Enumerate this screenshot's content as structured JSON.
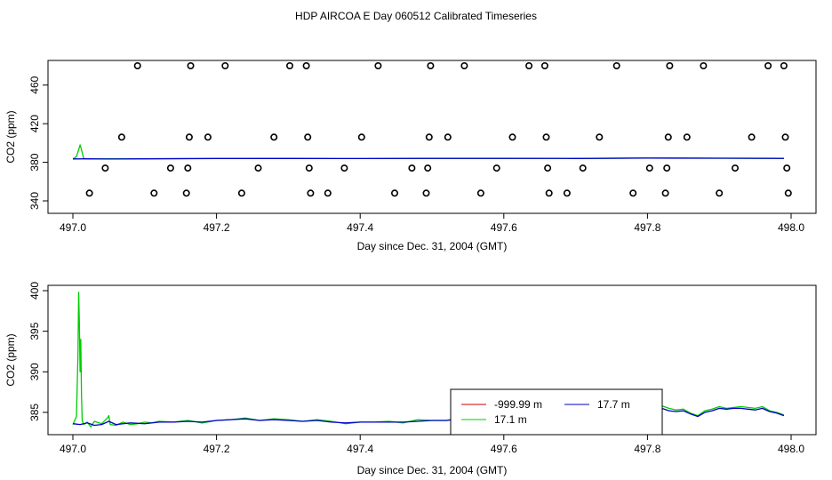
{
  "title": "HDP AIRCOA E  Day 060512  Calibrated Timeseries",
  "chart_data": [
    {
      "type": "scatter",
      "xlabel": "Day since Dec. 31, 2004 (GMT)",
      "ylabel": "CO2 (ppm)",
      "xlim": [
        497.0,
        498.0
      ],
      "ylim": [
        340,
        480
      ],
      "xticks": [
        "497.0",
        "497.2",
        "497.4",
        "497.6",
        "497.8",
        "498.0"
      ],
      "yticks": [
        "340",
        "380",
        "420",
        "460"
      ],
      "xtick_values": [
        497.0,
        497.2,
        497.4,
        497.6,
        497.8,
        498.0
      ],
      "ytick_values": [
        340,
        380,
        420,
        460
      ],
      "points": [
        [
          497.023,
          348
        ],
        [
          497.045,
          374
        ],
        [
          497.068,
          406
        ],
        [
          497.09,
          480
        ],
        [
          497.113,
          348
        ],
        [
          497.136,
          374
        ],
        [
          497.158,
          348
        ],
        [
          497.16,
          374
        ],
        [
          497.162,
          406
        ],
        [
          497.164,
          480
        ],
        [
          497.188,
          406
        ],
        [
          497.212,
          480
        ],
        [
          497.235,
          348
        ],
        [
          497.258,
          374
        ],
        [
          497.28,
          406
        ],
        [
          497.302,
          480
        ],
        [
          497.325,
          480
        ],
        [
          497.327,
          406
        ],
        [
          497.329,
          374
        ],
        [
          497.331,
          348
        ],
        [
          497.355,
          348
        ],
        [
          497.378,
          374
        ],
        [
          497.402,
          406
        ],
        [
          497.425,
          480
        ],
        [
          497.448,
          348
        ],
        [
          497.472,
          374
        ],
        [
          497.492,
          348
        ],
        [
          497.494,
          374
        ],
        [
          497.496,
          406
        ],
        [
          497.498,
          480
        ],
        [
          497.522,
          406
        ],
        [
          497.545,
          480
        ],
        [
          497.568,
          348
        ],
        [
          497.59,
          374
        ],
        [
          497.612,
          406
        ],
        [
          497.635,
          480
        ],
        [
          497.657,
          480
        ],
        [
          497.659,
          406
        ],
        [
          497.661,
          374
        ],
        [
          497.663,
          348
        ],
        [
          497.688,
          348
        ],
        [
          497.71,
          374
        ],
        [
          497.733,
          406
        ],
        [
          497.757,
          480
        ],
        [
          497.78,
          348
        ],
        [
          497.803,
          374
        ],
        [
          497.825,
          348
        ],
        [
          497.827,
          374
        ],
        [
          497.829,
          406
        ],
        [
          497.831,
          480
        ],
        [
          497.855,
          406
        ],
        [
          497.878,
          480
        ],
        [
          497.9,
          348
        ],
        [
          497.922,
          374
        ],
        [
          497.945,
          406
        ],
        [
          497.968,
          480
        ],
        [
          497.99,
          480
        ],
        [
          497.992,
          406
        ],
        [
          497.994,
          374
        ],
        [
          497.996,
          348
        ]
      ],
      "series": [
        {
          "color": "#00cc00",
          "x": [
            497.0,
            497.005,
            497.008,
            497.01,
            497.012,
            497.015,
            497.02,
            497.1,
            497.2,
            497.3,
            497.4,
            497.5,
            497.6,
            497.7,
            497.8,
            497.9,
            497.99
          ],
          "y": [
            383.5,
            386,
            393,
            398,
            393,
            384,
            383.5,
            383.7,
            384,
            384,
            383.8,
            384,
            384,
            383.9,
            384.5,
            384.2,
            384
          ]
        },
        {
          "color": "#0000cc",
          "x": [
            497.0,
            497.02,
            497.05,
            497.1,
            497.2,
            497.3,
            497.4,
            497.5,
            497.6,
            497.7,
            497.8,
            497.9,
            497.99
          ],
          "y": [
            383.5,
            383.6,
            383.4,
            383.6,
            383.8,
            383.9,
            383.8,
            384,
            384,
            383.9,
            384.3,
            384.2,
            384
          ]
        }
      ]
    },
    {
      "type": "line",
      "xlabel": "Day since Dec. 31, 2004 (GMT)",
      "ylabel": "CO2 (ppm)",
      "xlim": [
        497.0,
        498.0
      ],
      "ylim": [
        382.8,
        400
      ],
      "xticks": [
        "497.0",
        "497.2",
        "497.4",
        "497.6",
        "497.8",
        "498.0"
      ],
      "yticks": [
        "385",
        "390",
        "395",
        "400"
      ],
      "xtick_values": [
        497.0,
        497.2,
        497.4,
        497.6,
        497.8,
        498.0
      ],
      "ytick_values": [
        385,
        390,
        395,
        400
      ],
      "legend": {
        "placement": "bottom-center",
        "entries": [
          {
            "label": "-999.99 m",
            "color": "#cc0000"
          },
          {
            "label": "17.7 m",
            "color": "#0000cc"
          },
          {
            "label": "17.1 m",
            "color": "#00cc00"
          }
        ]
      },
      "series": [
        {
          "name": "17.1 m",
          "color": "#00cc00",
          "x": [
            497.0,
            497.005,
            497.007,
            497.008,
            497.009,
            497.01,
            497.011,
            497.012,
            497.013,
            497.015,
            497.02,
            497.025,
            497.03,
            497.04,
            497.048,
            497.05,
            497.052,
            497.06,
            497.07,
            497.08,
            497.09,
            497.1,
            497.11,
            497.12,
            497.14,
            497.16,
            497.18,
            497.2,
            497.22,
            497.24,
            497.26,
            497.28,
            497.3,
            497.32,
            497.34,
            497.36,
            497.38,
            497.4,
            497.42,
            497.44,
            497.46,
            497.48,
            497.5,
            497.52,
            497.54,
            497.56,
            497.58,
            497.6,
            497.62,
            497.64,
            497.66,
            497.68,
            497.7,
            497.72,
            497.74,
            497.75,
            497.76,
            497.78,
            497.79,
            497.8,
            497.81,
            497.82,
            497.83,
            497.84,
            497.85,
            497.86,
            497.87,
            497.88,
            497.89,
            497.9,
            497.91,
            497.92,
            497.93,
            497.94,
            497.95,
            497.96,
            497.97,
            497.98,
            497.99
          ],
          "y": [
            383.5,
            384.5,
            392,
            399.8,
            396,
            390,
            394,
            387,
            384,
            383.5,
            383.8,
            383.2,
            383.9,
            383.6,
            384.3,
            384.6,
            383.5,
            383.4,
            383.8,
            383.5,
            383.6,
            383.8,
            383.7,
            383.9,
            383.8,
            384.0,
            383.7,
            384.0,
            384.1,
            384.3,
            384.0,
            384.2,
            384.1,
            383.9,
            384.1,
            383.9,
            383.6,
            383.8,
            383.8,
            383.9,
            383.7,
            384.1,
            384.0,
            384.0,
            384.4,
            384.2,
            384.3,
            384.3,
            384.2,
            384.0,
            383.9,
            384.0,
            384.0,
            384.1,
            384.3,
            384.4,
            384.0,
            384.3,
            384.8,
            384.6,
            385.0,
            385.8,
            385.5,
            385.3,
            385.4,
            384.9,
            384.6,
            385.2,
            385.4,
            385.7,
            385.5,
            385.6,
            385.7,
            385.6,
            385.5,
            385.7,
            385.2,
            385.0,
            384.7
          ]
        },
        {
          "name": "17.7 m",
          "color": "#0000cc",
          "x": [
            497.0,
            497.01,
            497.02,
            497.03,
            497.04,
            497.05,
            497.06,
            497.08,
            497.1,
            497.12,
            497.14,
            497.16,
            497.18,
            497.2,
            497.22,
            497.24,
            497.26,
            497.28,
            497.3,
            497.32,
            497.34,
            497.36,
            497.38,
            497.4,
            497.42,
            497.44,
            497.46,
            497.48,
            497.5,
            497.52,
            497.54,
            497.56,
            497.58,
            497.6,
            497.62,
            497.64,
            497.66,
            497.68,
            497.7,
            497.72,
            497.74,
            497.76,
            497.775,
            497.785,
            497.8,
            497.81,
            497.82,
            497.83,
            497.84,
            497.85,
            497.86,
            497.87,
            497.88,
            497.89,
            497.9,
            497.91,
            497.92,
            497.93,
            497.94,
            497.95,
            497.96,
            497.97,
            497.98,
            497.99
          ],
          "y": [
            383.6,
            383.5,
            383.7,
            383.4,
            383.5,
            383.9,
            383.5,
            383.7,
            383.6,
            383.8,
            383.8,
            383.9,
            383.8,
            384.0,
            384.1,
            384.2,
            384.0,
            384.1,
            384.0,
            383.9,
            384.0,
            383.8,
            383.7,
            383.8,
            383.8,
            383.8,
            383.8,
            383.9,
            384.0,
            384.0,
            384.2,
            384.1,
            384.1,
            384.2,
            384.1,
            384.0,
            383.9,
            383.9,
            383.9,
            384.0,
            384.1,
            384.0,
            384.2,
            384.7,
            384.4,
            385.0,
            385.5,
            385.2,
            385.1,
            385.2,
            384.8,
            384.5,
            385.0,
            385.2,
            385.5,
            385.4,
            385.5,
            385.5,
            385.4,
            385.3,
            385.5,
            385.1,
            384.9,
            384.6
          ]
        }
      ]
    }
  ]
}
